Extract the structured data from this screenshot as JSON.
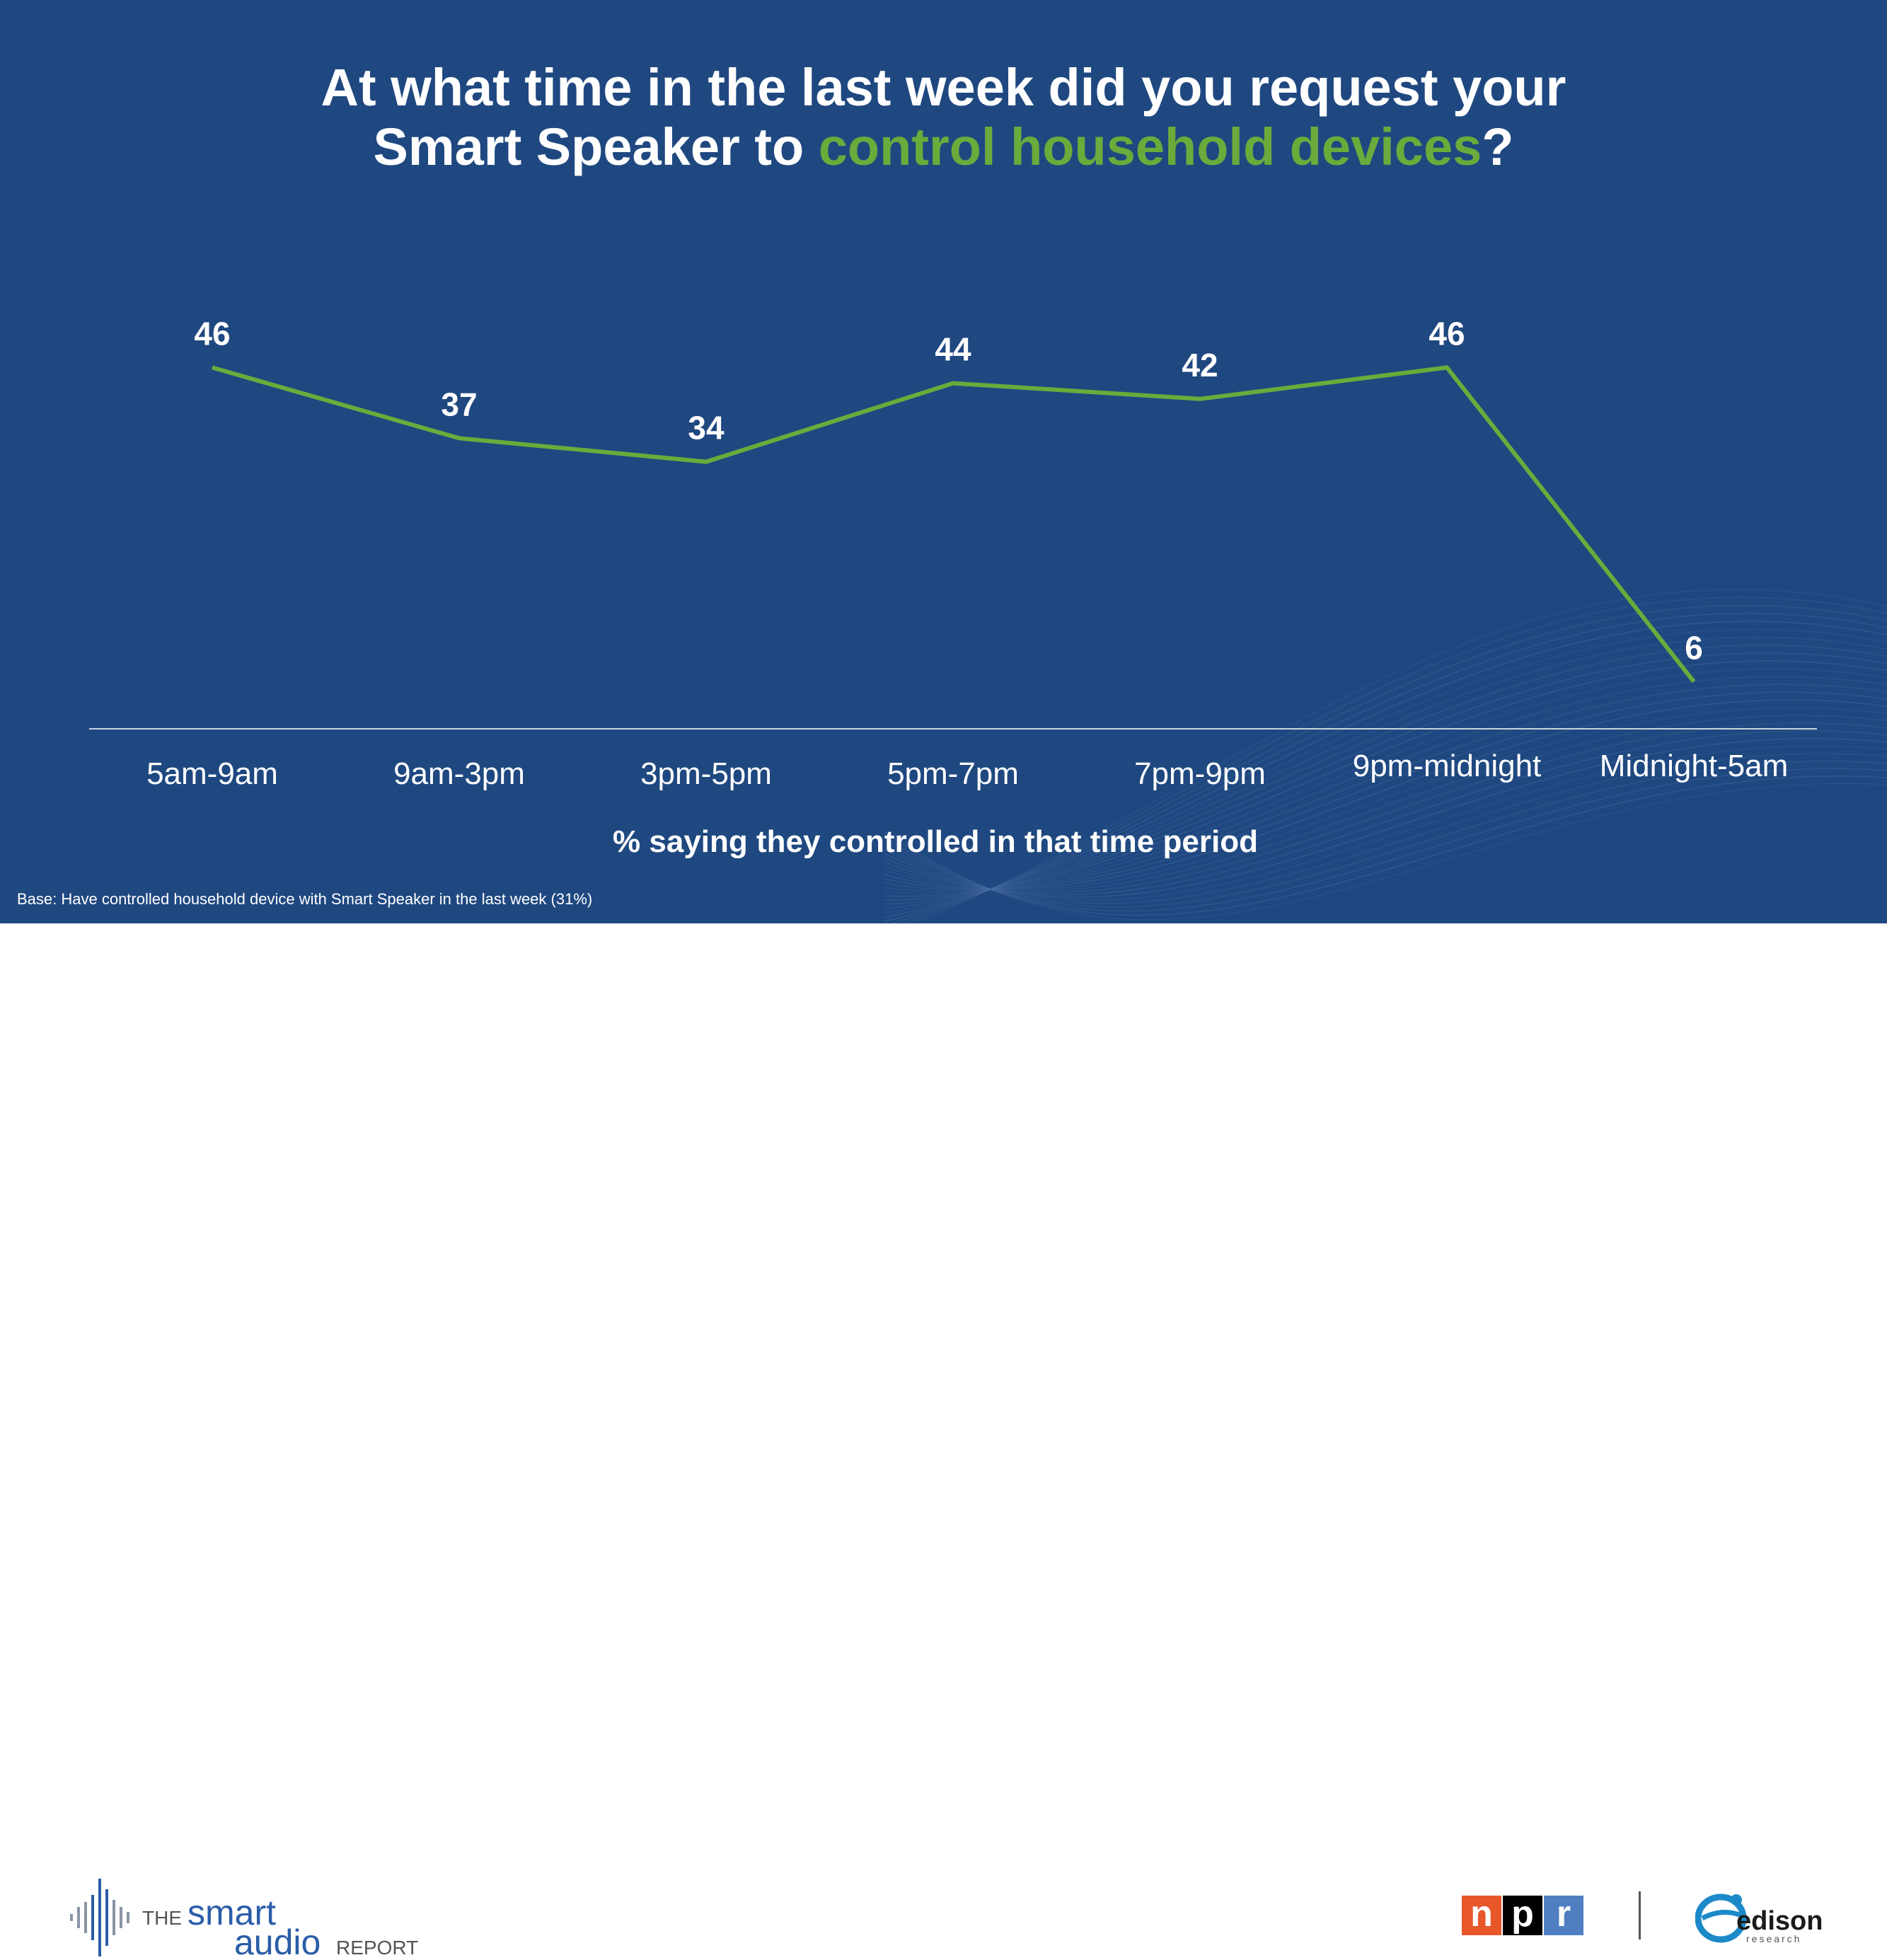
{
  "title": {
    "line1": "At what time in the last week did you request your",
    "line2_prefix": "Smart Speaker to ",
    "line2_highlight": "control household devices",
    "line2_suffix": "?"
  },
  "colors": {
    "background": "#1f4880",
    "accent_green": "#6aab3c",
    "text": "#ffffff"
  },
  "chart_data": {
    "type": "line",
    "categories": [
      "5am-9am",
      "9am-3pm",
      "3pm-5pm",
      "5pm-7pm",
      "7pm-9pm",
      "9pm-midnight",
      "Midnight-5am"
    ],
    "series": [
      {
        "values": [
          46,
          37,
          34,
          44,
          42,
          46,
          6
        ]
      }
    ],
    "xlabel": "% saying they controlled in that time period",
    "ylim": [
      0,
      50
    ],
    "grid": false,
    "data_labels": true
  },
  "base_note": "Base: Have controlled household device with Smart Speaker in the last week (31%)",
  "footer": {
    "sar_logo": {
      "the": "THE",
      "smart": "smart",
      "audio": "audio",
      "report": "REPORT"
    },
    "npr_logo": {
      "letters": [
        "n",
        "p",
        "r"
      ],
      "colors": [
        "#e8572a",
        "#000000",
        "#4f7fc1"
      ]
    },
    "edison_logo": {
      "name": "edison",
      "sub": "research",
      "color": "#1c8ac9"
    }
  }
}
